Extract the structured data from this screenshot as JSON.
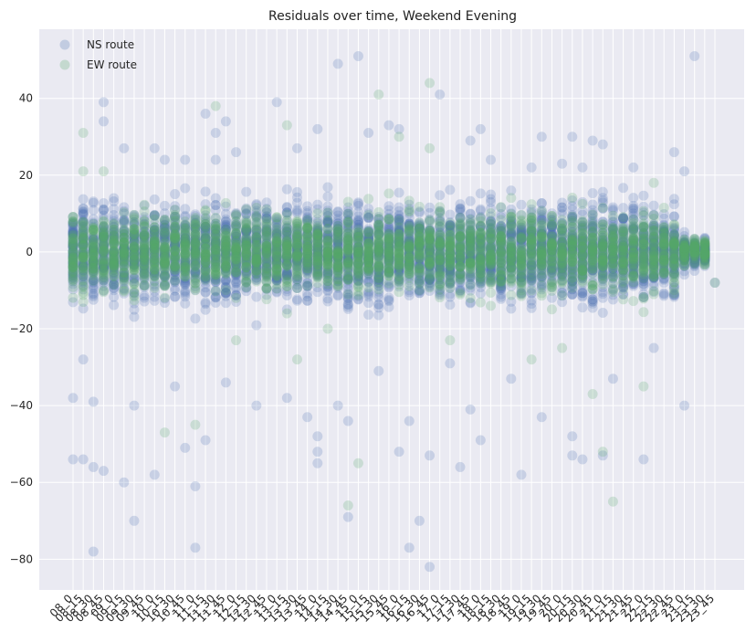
{
  "chart_data": {
    "type": "scatter",
    "title": "Residuals over time, Weekend Evening",
    "xlabel": "",
    "ylabel": "",
    "ylim": [
      -88,
      58
    ],
    "yticks": [
      -80,
      -60,
      -40,
      -20,
      0,
      20,
      40
    ],
    "grid": true,
    "legend_position": "top-left",
    "categories": [
      "08_0",
      "08_15",
      "08_30",
      "08_45",
      "09_0",
      "09_15",
      "09_30",
      "09_45",
      "10_0",
      "10_15",
      "10_30",
      "10_45",
      "11_0",
      "11_15",
      "11_30",
      "11_45",
      "12_0",
      "12_15",
      "12_30",
      "12_45",
      "13_0",
      "13_15",
      "13_30",
      "13_45",
      "14_0",
      "14_15",
      "14_30",
      "14_45",
      "15_0",
      "15_15",
      "15_30",
      "15_45",
      "16_0",
      "16_15",
      "16_30",
      "16_45",
      "17_0",
      "17_15",
      "17_30",
      "17_45",
      "18_0",
      "18_15",
      "18_30",
      "18_45",
      "19_0",
      "19_15",
      "19_30",
      "19_45",
      "20_0",
      "20_15",
      "20_30",
      "20_45",
      "21_0",
      "21_15",
      "21_30",
      "21_45",
      "22_0",
      "22_15",
      "22_30",
      "22_45",
      "23_0",
      "23_15",
      "23_30",
      "23_45"
    ],
    "series": [
      {
        "name": "NS route",
        "color": "#4c72b0",
        "outliers": [
          [
            "08_0",
            -38
          ],
          [
            "08_0",
            -54
          ],
          [
            "08_15",
            -28
          ],
          [
            "08_15",
            -54
          ],
          [
            "08_30",
            -78
          ],
          [
            "08_30",
            -56
          ],
          [
            "08_30",
            -39
          ],
          [
            "08_45",
            39
          ],
          [
            "08_45",
            34
          ],
          [
            "08_45",
            -57
          ],
          [
            "09_15",
            27
          ],
          [
            "09_15",
            -60
          ],
          [
            "09_30",
            -70
          ],
          [
            "09_30",
            -40
          ],
          [
            "10_0",
            27
          ],
          [
            "10_0",
            -58
          ],
          [
            "10_15",
            24
          ],
          [
            "10_30",
            -35
          ],
          [
            "10_45",
            24
          ],
          [
            "10_45",
            -51
          ],
          [
            "11_0",
            -61
          ],
          [
            "11_0",
            -77
          ],
          [
            "11_15",
            36
          ],
          [
            "11_15",
            -49
          ],
          [
            "11_30",
            31
          ],
          [
            "11_30",
            24
          ],
          [
            "11_45",
            34
          ],
          [
            "11_45",
            -34
          ],
          [
            "12_0",
            26
          ],
          [
            "12_30",
            -40
          ],
          [
            "13_0",
            39
          ],
          [
            "13_15",
            -38
          ],
          [
            "13_30",
            27
          ],
          [
            "13_45",
            -43
          ],
          [
            "14_0",
            32
          ],
          [
            "14_0",
            -52
          ],
          [
            "14_0",
            -55
          ],
          [
            "14_0",
            -48
          ],
          [
            "14_30",
            49
          ],
          [
            "14_30",
            -40
          ],
          [
            "14_45",
            -44
          ],
          [
            "14_45",
            -69
          ],
          [
            "15_0",
            51
          ],
          [
            "15_15",
            31
          ],
          [
            "15_30",
            -31
          ],
          [
            "15_45",
            33
          ],
          [
            "16_0",
            32
          ],
          [
            "16_0",
            -52
          ],
          [
            "16_15",
            -44
          ],
          [
            "16_15",
            -77
          ],
          [
            "16_30",
            -70
          ],
          [
            "16_45",
            -82
          ],
          [
            "16_45",
            -53
          ],
          [
            "17_0",
            41
          ],
          [
            "17_15",
            -29
          ],
          [
            "17_30",
            -56
          ],
          [
            "17_45",
            29
          ],
          [
            "17_45",
            -41
          ],
          [
            "18_0",
            32
          ],
          [
            "18_0",
            -49
          ],
          [
            "18_15",
            24
          ],
          [
            "18_45",
            -33
          ],
          [
            "19_0",
            -58
          ],
          [
            "19_15",
            22
          ],
          [
            "19_30",
            -43
          ],
          [
            "19_30",
            30
          ],
          [
            "20_0",
            23
          ],
          [
            "20_15",
            30
          ],
          [
            "20_15",
            -48
          ],
          [
            "20_15",
            -53
          ],
          [
            "20_30",
            -54
          ],
          [
            "20_30",
            22
          ],
          [
            "20_45",
            29
          ],
          [
            "21_0",
            28
          ],
          [
            "21_0",
            -53
          ],
          [
            "21_15",
            -33
          ],
          [
            "21_45",
            22
          ],
          [
            "22_0",
            -54
          ],
          [
            "22_15",
            -25
          ],
          [
            "22_45",
            26
          ],
          [
            "23_0",
            21
          ],
          [
            "23_0",
            -40
          ],
          [
            "23_15",
            51
          ],
          [
            "23_45",
            -8
          ]
        ]
      },
      {
        "name": "EW route",
        "color": "#55a868",
        "outliers": [
          [
            "08_15",
            31
          ],
          [
            "08_15",
            21
          ],
          [
            "08_45",
            21
          ],
          [
            "10_15",
            -47
          ],
          [
            "11_0",
            -45
          ],
          [
            "11_30",
            38
          ],
          [
            "12_0",
            -23
          ],
          [
            "13_15",
            33
          ],
          [
            "13_30",
            -28
          ],
          [
            "14_15",
            -20
          ],
          [
            "14_45",
            -66
          ],
          [
            "15_0",
            -55
          ],
          [
            "15_30",
            41
          ],
          [
            "16_0",
            30
          ],
          [
            "16_45",
            44
          ],
          [
            "16_45",
            27
          ],
          [
            "17_15",
            -23
          ],
          [
            "19_15",
            -28
          ],
          [
            "20_0",
            -25
          ],
          [
            "20_45",
            -37
          ],
          [
            "21_0",
            -52
          ],
          [
            "21_15",
            -65
          ],
          [
            "22_0",
            -35
          ],
          [
            "22_15",
            18
          ]
        ]
      }
    ]
  }
}
